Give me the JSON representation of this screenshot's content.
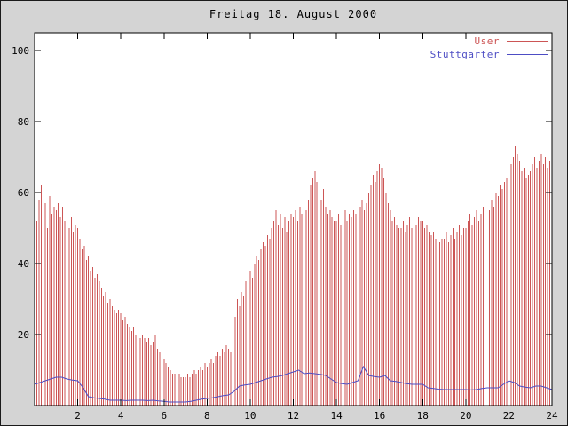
{
  "window": {
    "background": "#d4d4d4",
    "plot_background": "#ffffff",
    "axis_color": "#000000"
  },
  "chart_data": {
    "type": "bar",
    "title": "Freitag 18. August 2000",
    "xlabel": "",
    "ylabel": "",
    "xlim": [
      0,
      24
    ],
    "ylim": [
      0,
      105
    ],
    "xticks": [
      2,
      4,
      6,
      8,
      10,
      12,
      14,
      16,
      18,
      20,
      22,
      24
    ],
    "yticks": [
      20,
      40,
      60,
      80,
      100
    ],
    "grid": false,
    "legend_position": "top-right",
    "series": [
      {
        "name": "User",
        "style": "impulses",
        "color": "#cc5555",
        "x_start": 0,
        "x_step": 0.1,
        "values": [
          60,
          52,
          58,
          62,
          55,
          57,
          50,
          59,
          54,
          56,
          55,
          57,
          53,
          56,
          52,
          55,
          50,
          53,
          49,
          51,
          50,
          47,
          44,
          45,
          41,
          42,
          38,
          39,
          36,
          37,
          35,
          33,
          31,
          32,
          29,
          30,
          28,
          27,
          26,
          27,
          26,
          24,
          25,
          23,
          22,
          21,
          22,
          20,
          21,
          19,
          20,
          19,
          18,
          19,
          17,
          18,
          20,
          16,
          15,
          14,
          13,
          12,
          11,
          10,
          9,
          9,
          8,
          9,
          8,
          8,
          8,
          9,
          8,
          9,
          10,
          9,
          10,
          11,
          10,
          12,
          11,
          12,
          13,
          12,
          14,
          15,
          14,
          16,
          15,
          17,
          16,
          15,
          17,
          25,
          30,
          28,
          32,
          31,
          35,
          33,
          38,
          36,
          40,
          42,
          41,
          44,
          46,
          45,
          48,
          47,
          50,
          52,
          55,
          51,
          54,
          50,
          53,
          49,
          52,
          54,
          53,
          55,
          52,
          56,
          54,
          57,
          55,
          58,
          62,
          64,
          66,
          63,
          60,
          58,
          61,
          56,
          54,
          55,
          53,
          52,
          52,
          54,
          51,
          53,
          55,
          52,
          54,
          53,
          55,
          54,
          0,
          56,
          58,
          55,
          57,
          60,
          62,
          65,
          63,
          66,
          68,
          67,
          64,
          60,
          57,
          55,
          52,
          53,
          51,
          50,
          50,
          52,
          49,
          51,
          53,
          50,
          52,
          51,
          53,
          52,
          52,
          50,
          51,
          49,
          48,
          49,
          47,
          48,
          46,
          47,
          47,
          49,
          46,
          48,
          50,
          47,
          49,
          51,
          48,
          50,
          50,
          52,
          54,
          51,
          53,
          55,
          52,
          54,
          56,
          53,
          0,
          55,
          58,
          56,
          60,
          59,
          62,
          61,
          63,
          64,
          65,
          68,
          70,
          73,
          71,
          69,
          66,
          67,
          64,
          65,
          66,
          68,
          70,
          67,
          69,
          71,
          68,
          70,
          67,
          69,
          68
        ]
      },
      {
        "name": "Stuttgarter",
        "style": "line",
        "color": "#4d4dc4",
        "x_start": 0,
        "x_step": 0.25,
        "values": [
          6,
          6.5,
          7,
          7.5,
          8,
          8,
          7.5,
          7.2,
          7,
          5,
          2.5,
          2.2,
          2,
          1.8,
          1.5,
          1.5,
          1.5,
          1.4,
          1.5,
          1.5,
          1.5,
          1.4,
          1.5,
          1.3,
          1.2,
          1,
          1,
          1,
          1,
          1.2,
          1.5,
          1.8,
          2,
          2.2,
          2.5,
          2.8,
          3,
          4,
          5.5,
          5.8,
          6,
          6.5,
          7,
          7.5,
          8,
          8.2,
          8.5,
          9,
          9.5,
          10,
          9,
          9.2,
          9,
          8.8,
          8.5,
          7.5,
          6.5,
          6.2,
          6,
          6.5,
          7,
          11,
          8.5,
          8.2,
          8,
          8.5,
          7,
          6.8,
          6.5,
          6.2,
          6,
          6,
          6,
          5,
          4.8,
          4.6,
          4.5,
          4.5,
          4.5,
          4.5,
          4.5,
          4.4,
          4.5,
          4.8,
          5,
          5,
          5,
          6,
          7,
          6.5,
          5.5,
          5.2,
          5,
          5.5,
          5.5,
          5,
          4.5
        ]
      }
    ]
  }
}
